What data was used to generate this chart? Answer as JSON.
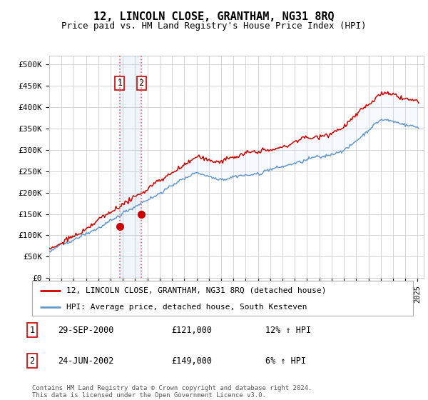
{
  "title": "12, LINCOLN CLOSE, GRANTHAM, NG31 8RQ",
  "subtitle": "Price paid vs. HM Land Registry's House Price Index (HPI)",
  "legend_label_red": "12, LINCOLN CLOSE, GRANTHAM, NG31 8RQ (detached house)",
  "legend_label_blue": "HPI: Average price, detached house, South Kesteven",
  "footer": "Contains HM Land Registry data © Crown copyright and database right 2024.\nThis data is licensed under the Open Government Licence v3.0.",
  "transactions": [
    {
      "num": 1,
      "date": "29-SEP-2000",
      "price": 121000,
      "hpi_pct": "12% ↑ HPI",
      "year": 2000.75
    },
    {
      "num": 2,
      "date": "24-JUN-2002",
      "price": 149000,
      "hpi_pct": "6% ↑ HPI",
      "year": 2002.5
    }
  ],
  "xmin": 1995,
  "xmax": 2025.5,
  "ymin": 0,
  "ymax": 520000,
  "yticks": [
    0,
    50000,
    100000,
    150000,
    200000,
    250000,
    300000,
    350000,
    400000,
    450000,
    500000
  ],
  "ytick_labels": [
    "£0",
    "£50K",
    "£100K",
    "£150K",
    "£200K",
    "£250K",
    "£300K",
    "£350K",
    "£400K",
    "£450K",
    "£500K"
  ],
  "xticks": [
    1995,
    1996,
    1997,
    1998,
    1999,
    2000,
    2001,
    2002,
    2003,
    2004,
    2005,
    2006,
    2007,
    2008,
    2009,
    2010,
    2011,
    2012,
    2013,
    2014,
    2015,
    2016,
    2017,
    2018,
    2019,
    2020,
    2021,
    2022,
    2023,
    2024,
    2025
  ],
  "red_color": "#cc0000",
  "blue_color": "#6699cc",
  "shade_color": "#ddeeff",
  "vline_color": "#cc3333",
  "grid_color": "#cccccc",
  "bg_color": "#ffffff",
  "title_fontsize": 11,
  "subtitle_fontsize": 9
}
